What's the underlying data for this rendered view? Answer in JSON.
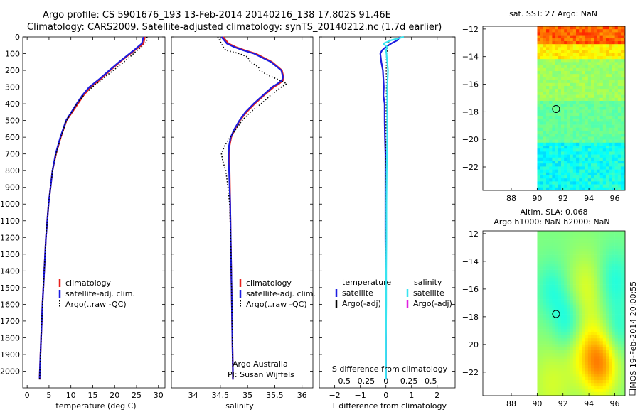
{
  "header": {
    "line1": "Argo profile: CS 5901676_193 13-Feb-2014 20140216_138 17.802S 91.46E",
    "line2": "Climatology: CARS2009. Satellite-adjusted climatology: synTS_20140212.nc (1.7d earlier)"
  },
  "side_label": "IMOS 19-Feb-2014 20:00:55",
  "colors": {
    "climatology": "#e8201c",
    "satellite": "#1c1ce0",
    "argo": "#000000",
    "salinity_sat": "#38e4f0",
    "salinity_argo": "#e020e0"
  },
  "chart_data": [
    {
      "type": "line",
      "id": "temperature",
      "xlabel": "temperature (deg C)",
      "ylabel": "",
      "xlim": [
        -1,
        31.5
      ],
      "ylim": [
        2100,
        0
      ],
      "xticks": [
        0,
        5,
        10,
        15,
        20,
        25,
        30
      ],
      "yticks": [
        0,
        100,
        200,
        300,
        400,
        500,
        600,
        700,
        800,
        900,
        1000,
        1100,
        1200,
        1300,
        1400,
        1500,
        1600,
        1700,
        1800,
        1900,
        2000
      ],
      "legend": {
        "placement": "lower-middle",
        "entries": [
          "climatology",
          "satellite-adj. clim.",
          "Argo(..raw -QC)"
        ]
      },
      "series": [
        {
          "name": "climatology",
          "style": "solid",
          "depth": [
            0,
            40,
            60,
            80,
            100,
            150,
            200,
            250,
            300,
            350,
            400,
            450,
            500,
            600,
            700,
            800,
            1000,
            1200,
            1400,
            1600,
            1800,
            2000,
            2050
          ],
          "values": [
            26.9,
            26.6,
            25.6,
            24.6,
            23.6,
            21.2,
            19.0,
            16.9,
            14.5,
            12.9,
            11.6,
            10.3,
            9.0,
            7.7,
            6.6,
            5.8,
            4.9,
            4.3,
            3.9,
            3.5,
            3.2,
            2.9,
            2.85
          ]
        },
        {
          "name": "satellite-adj. clim.",
          "style": "solid",
          "depth": [
            0,
            40,
            60,
            80,
            100,
            150,
            200,
            250,
            300,
            350,
            400,
            450,
            500,
            600,
            700,
            800,
            1000,
            1200,
            1400,
            1600,
            1800,
            2000,
            2050
          ],
          "values": [
            26.6,
            26.2,
            25.3,
            24.4,
            23.4,
            21.0,
            18.8,
            16.6,
            14.2,
            12.6,
            11.3,
            10.1,
            8.9,
            7.6,
            6.5,
            5.8,
            4.9,
            4.3,
            3.9,
            3.5,
            3.2,
            2.9,
            2.85
          ]
        },
        {
          "name": "Argo(..raw -QC)",
          "style": "dotted",
          "depth": [
            0,
            30,
            50,
            70,
            90,
            110,
            150,
            200,
            250,
            300,
            350,
            400,
            450,
            500,
            600,
            700,
            800,
            1000,
            1200,
            1400,
            1600,
            1800,
            2000,
            2050
          ],
          "values": [
            27.4,
            27.3,
            26.6,
            25.6,
            24.7,
            23.9,
            22.1,
            19.7,
            17.3,
            14.9,
            12.9,
            11.4,
            10.2,
            9.0,
            7.7,
            6.6,
            5.8,
            4.9,
            4.3,
            3.9,
            3.5,
            3.2,
            2.9,
            2.85
          ]
        }
      ]
    },
    {
      "type": "line",
      "id": "salinity",
      "xlabel": "salinity",
      "ylabel": "",
      "xlim": [
        33.6,
        36.2
      ],
      "ylim": [
        2100,
        0
      ],
      "xticks": [
        34,
        34.5,
        35,
        35.5,
        36
      ],
      "legend": {
        "placement": "lower-right",
        "entries": [
          "climatology",
          "satellite-adj. clim.",
          "Argo(..raw -QC)"
        ]
      },
      "annotations": [
        "Argo Australia",
        "PI: Susan Wijffels"
      ],
      "series": [
        {
          "name": "climatology",
          "style": "solid",
          "depth": [
            0,
            40,
            60,
            80,
            100,
            150,
            200,
            240,
            260,
            280,
            300,
            350,
            400,
            450,
            500,
            550,
            600,
            650,
            700,
            750,
            800,
            1000,
            1200,
            1400,
            1600,
            1800,
            2000,
            2050
          ],
          "values": [
            34.55,
            34.65,
            34.78,
            34.95,
            35.15,
            35.45,
            35.63,
            35.66,
            35.65,
            35.58,
            35.48,
            35.3,
            35.13,
            34.98,
            34.86,
            34.77,
            34.7,
            34.67,
            34.66,
            34.66,
            34.67,
            34.68,
            34.69,
            34.7,
            34.71,
            34.72,
            34.73,
            34.73
          ]
        },
        {
          "name": "satellite-adj. clim.",
          "style": "solid",
          "depth": [
            0,
            40,
            60,
            80,
            100,
            150,
            200,
            240,
            260,
            280,
            300,
            350,
            400,
            450,
            500,
            550,
            600,
            650,
            700,
            750,
            800,
            1000,
            1200,
            1400,
            1600,
            1800,
            2000,
            2050
          ],
          "values": [
            34.52,
            34.62,
            34.75,
            34.92,
            35.12,
            35.43,
            35.62,
            35.65,
            35.63,
            35.55,
            35.45,
            35.28,
            35.11,
            34.96,
            34.85,
            34.76,
            34.69,
            34.66,
            34.65,
            34.65,
            34.66,
            34.68,
            34.69,
            34.7,
            34.71,
            34.72,
            34.73,
            34.73
          ]
        },
        {
          "name": "Argo(..raw -QC)",
          "style": "dotted",
          "depth": [
            0,
            40,
            60,
            80,
            100,
            120,
            150,
            180,
            200,
            230,
            260,
            280,
            300,
            350,
            400,
            450,
            500,
            600,
            650,
            700,
            750,
            800,
            900,
            1000,
            1200,
            1400,
            1600,
            1800,
            2000,
            2050
          ],
          "values": [
            34.45,
            34.52,
            34.55,
            34.6,
            34.85,
            35.0,
            35.05,
            35.2,
            35.22,
            35.38,
            35.6,
            35.72,
            35.62,
            35.42,
            35.25,
            35.05,
            34.9,
            34.68,
            34.58,
            34.52,
            34.55,
            34.6,
            34.64,
            34.67,
            34.69,
            34.7,
            34.71,
            34.72,
            34.73,
            34.73
          ]
        }
      ]
    },
    {
      "type": "line",
      "id": "difference",
      "xlabel": "T difference from climatology",
      "xlabel_top": "S difference from climatology",
      "xlim": [
        -2.6,
        2.7
      ],
      "ylim": [
        2100,
        0
      ],
      "xticks": [
        -2,
        -1,
        0,
        1,
        2
      ],
      "xticks_top": {
        "positions": [
          -1.75,
          -0.9,
          0,
          0.9,
          1.75
        ],
        "labels": [
          "-0.5",
          "-0.25",
          "0",
          "0.25",
          "0.5"
        ]
      },
      "legend": {
        "placement": "lower",
        "headers": [
          "temperature",
          "salinity"
        ],
        "entries": [
          "satellite",
          "Argo(-adj)",
          "satellite",
          "Argo(-adj)"
        ]
      },
      "series": [
        {
          "name": "temperature satellite",
          "style": "solid",
          "depth": [
            0,
            20,
            40,
            60,
            80,
            100,
            150,
            200,
            250,
            300,
            350,
            400,
            500,
            600,
            700,
            800,
            1000,
            1200,
            1400,
            1600,
            1800,
            2000,
            2050
          ],
          "values": [
            0.55,
            0.45,
            0.2,
            0.0,
            -0.15,
            -0.22,
            -0.18,
            -0.12,
            -0.1,
            -0.08,
            -0.1,
            -0.05,
            -0.05,
            -0.04,
            -0.02,
            -0.02,
            -0.02,
            -0.02,
            -0.01,
            -0.01,
            0,
            0,
            0
          ]
        },
        {
          "name": "temperature Argo(-adj)",
          "style": "dotted",
          "depth": [
            0,
            40,
            80,
            120,
            200,
            300,
            400,
            600,
            800,
            1000,
            1200,
            1400,
            1600,
            1800,
            2000,
            2050
          ],
          "values": [
            0.2,
            0.1,
            0.05,
            0.02,
            0.01,
            0.02,
            0.01,
            0.0,
            0.0,
            0.0,
            0.0,
            0.0,
            0.0,
            0.0,
            0.0,
            0.0
          ]
        },
        {
          "name": "salinity satellite",
          "style": "solid",
          "depth": [
            0,
            20,
            40,
            60,
            80,
            100,
            150,
            200,
            300,
            400,
            500,
            600,
            700,
            800,
            1000,
            1200,
            1400,
            1600,
            1800,
            2000,
            2050
          ],
          "values": [
            0.7,
            0.2,
            -0.1,
            0.05,
            0.0,
            0.02,
            0.05,
            0.08,
            0.05,
            0.05,
            0.05,
            0.05,
            0.04,
            0.03,
            0.02,
            0.02,
            0.01,
            0.01,
            0.0,
            0.0,
            0.0
          ]
        }
      ]
    },
    {
      "type": "heatmap",
      "id": "sst-map",
      "title": "sat. SST: 27  Argo: NaN",
      "xlim": [
        85.8,
        96.8
      ],
      "ylim": [
        -23.7,
        -11.8
      ],
      "xticks": [
        88,
        90,
        92,
        94,
        96
      ],
      "yticks": [
        -12,
        -14,
        -16,
        -18,
        -20,
        -22
      ],
      "data_xrange": [
        90,
        96.8
      ],
      "marker": {
        "lon": 91.46,
        "lat": -17.8
      }
    },
    {
      "type": "heatmap",
      "id": "sla-map",
      "title": "Altim. SLA: 0.068",
      "subtitle": "Argo h1000: NaN h2000: NaN",
      "xlim": [
        85.8,
        96.8
      ],
      "ylim": [
        -23.7,
        -11.8
      ],
      "xticks": [
        88,
        90,
        92,
        94,
        96
      ],
      "yticks": [
        -12,
        -14,
        -16,
        -18,
        -20,
        -22
      ],
      "data_xrange": [
        90,
        96.8
      ],
      "marker": {
        "lon": 91.46,
        "lat": -17.8
      }
    }
  ]
}
